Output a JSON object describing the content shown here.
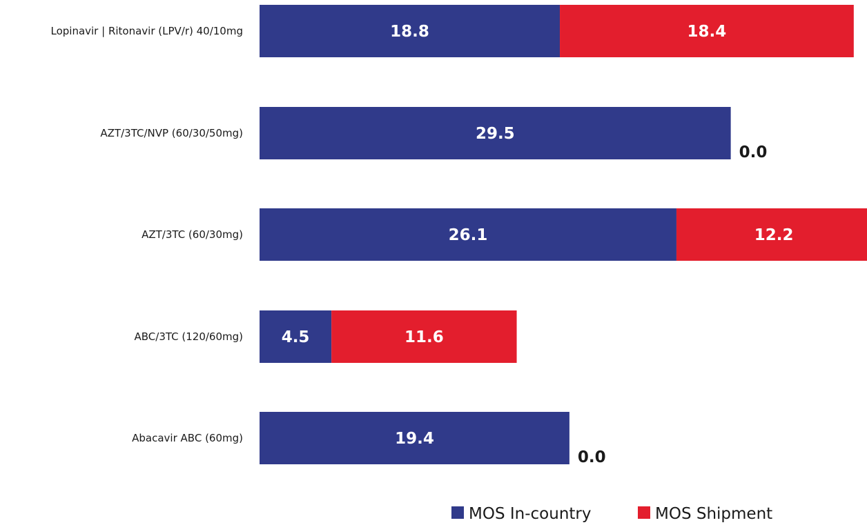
{
  "chart_data": {
    "type": "bar",
    "orientation": "horizontal",
    "stacked": true,
    "title": "",
    "xlabel": "",
    "ylabel": "",
    "xlim": [
      0,
      48.2
    ],
    "grid": false,
    "legend_position": "bottom-right",
    "categories": [
      "Lopinavir | Ritonavir (LPV/r)  40/10mg",
      "AZT/3TC/NVP (60/30/50mg)",
      "AZT/3TC (60/30mg)",
      "ABC/3TC (120/60mg)",
      "Abacavir ABC (60mg)"
    ],
    "series": [
      {
        "name": "MOS In-country",
        "color": "#303a8a",
        "values": [
          18.8,
          29.5,
          26.1,
          4.5,
          19.4
        ],
        "labels": [
          "18.8",
          "29.5",
          "26.1",
          "4.5",
          "19.4"
        ]
      },
      {
        "name": "MOS  Shipment",
        "color": "#e31e2d",
        "values": [
          18.4,
          0.0,
          12.2,
          11.6,
          0.0
        ],
        "labels": [
          "18.4",
          "0.0",
          "12.2",
          "11.6",
          "0.0"
        ]
      }
    ]
  }
}
